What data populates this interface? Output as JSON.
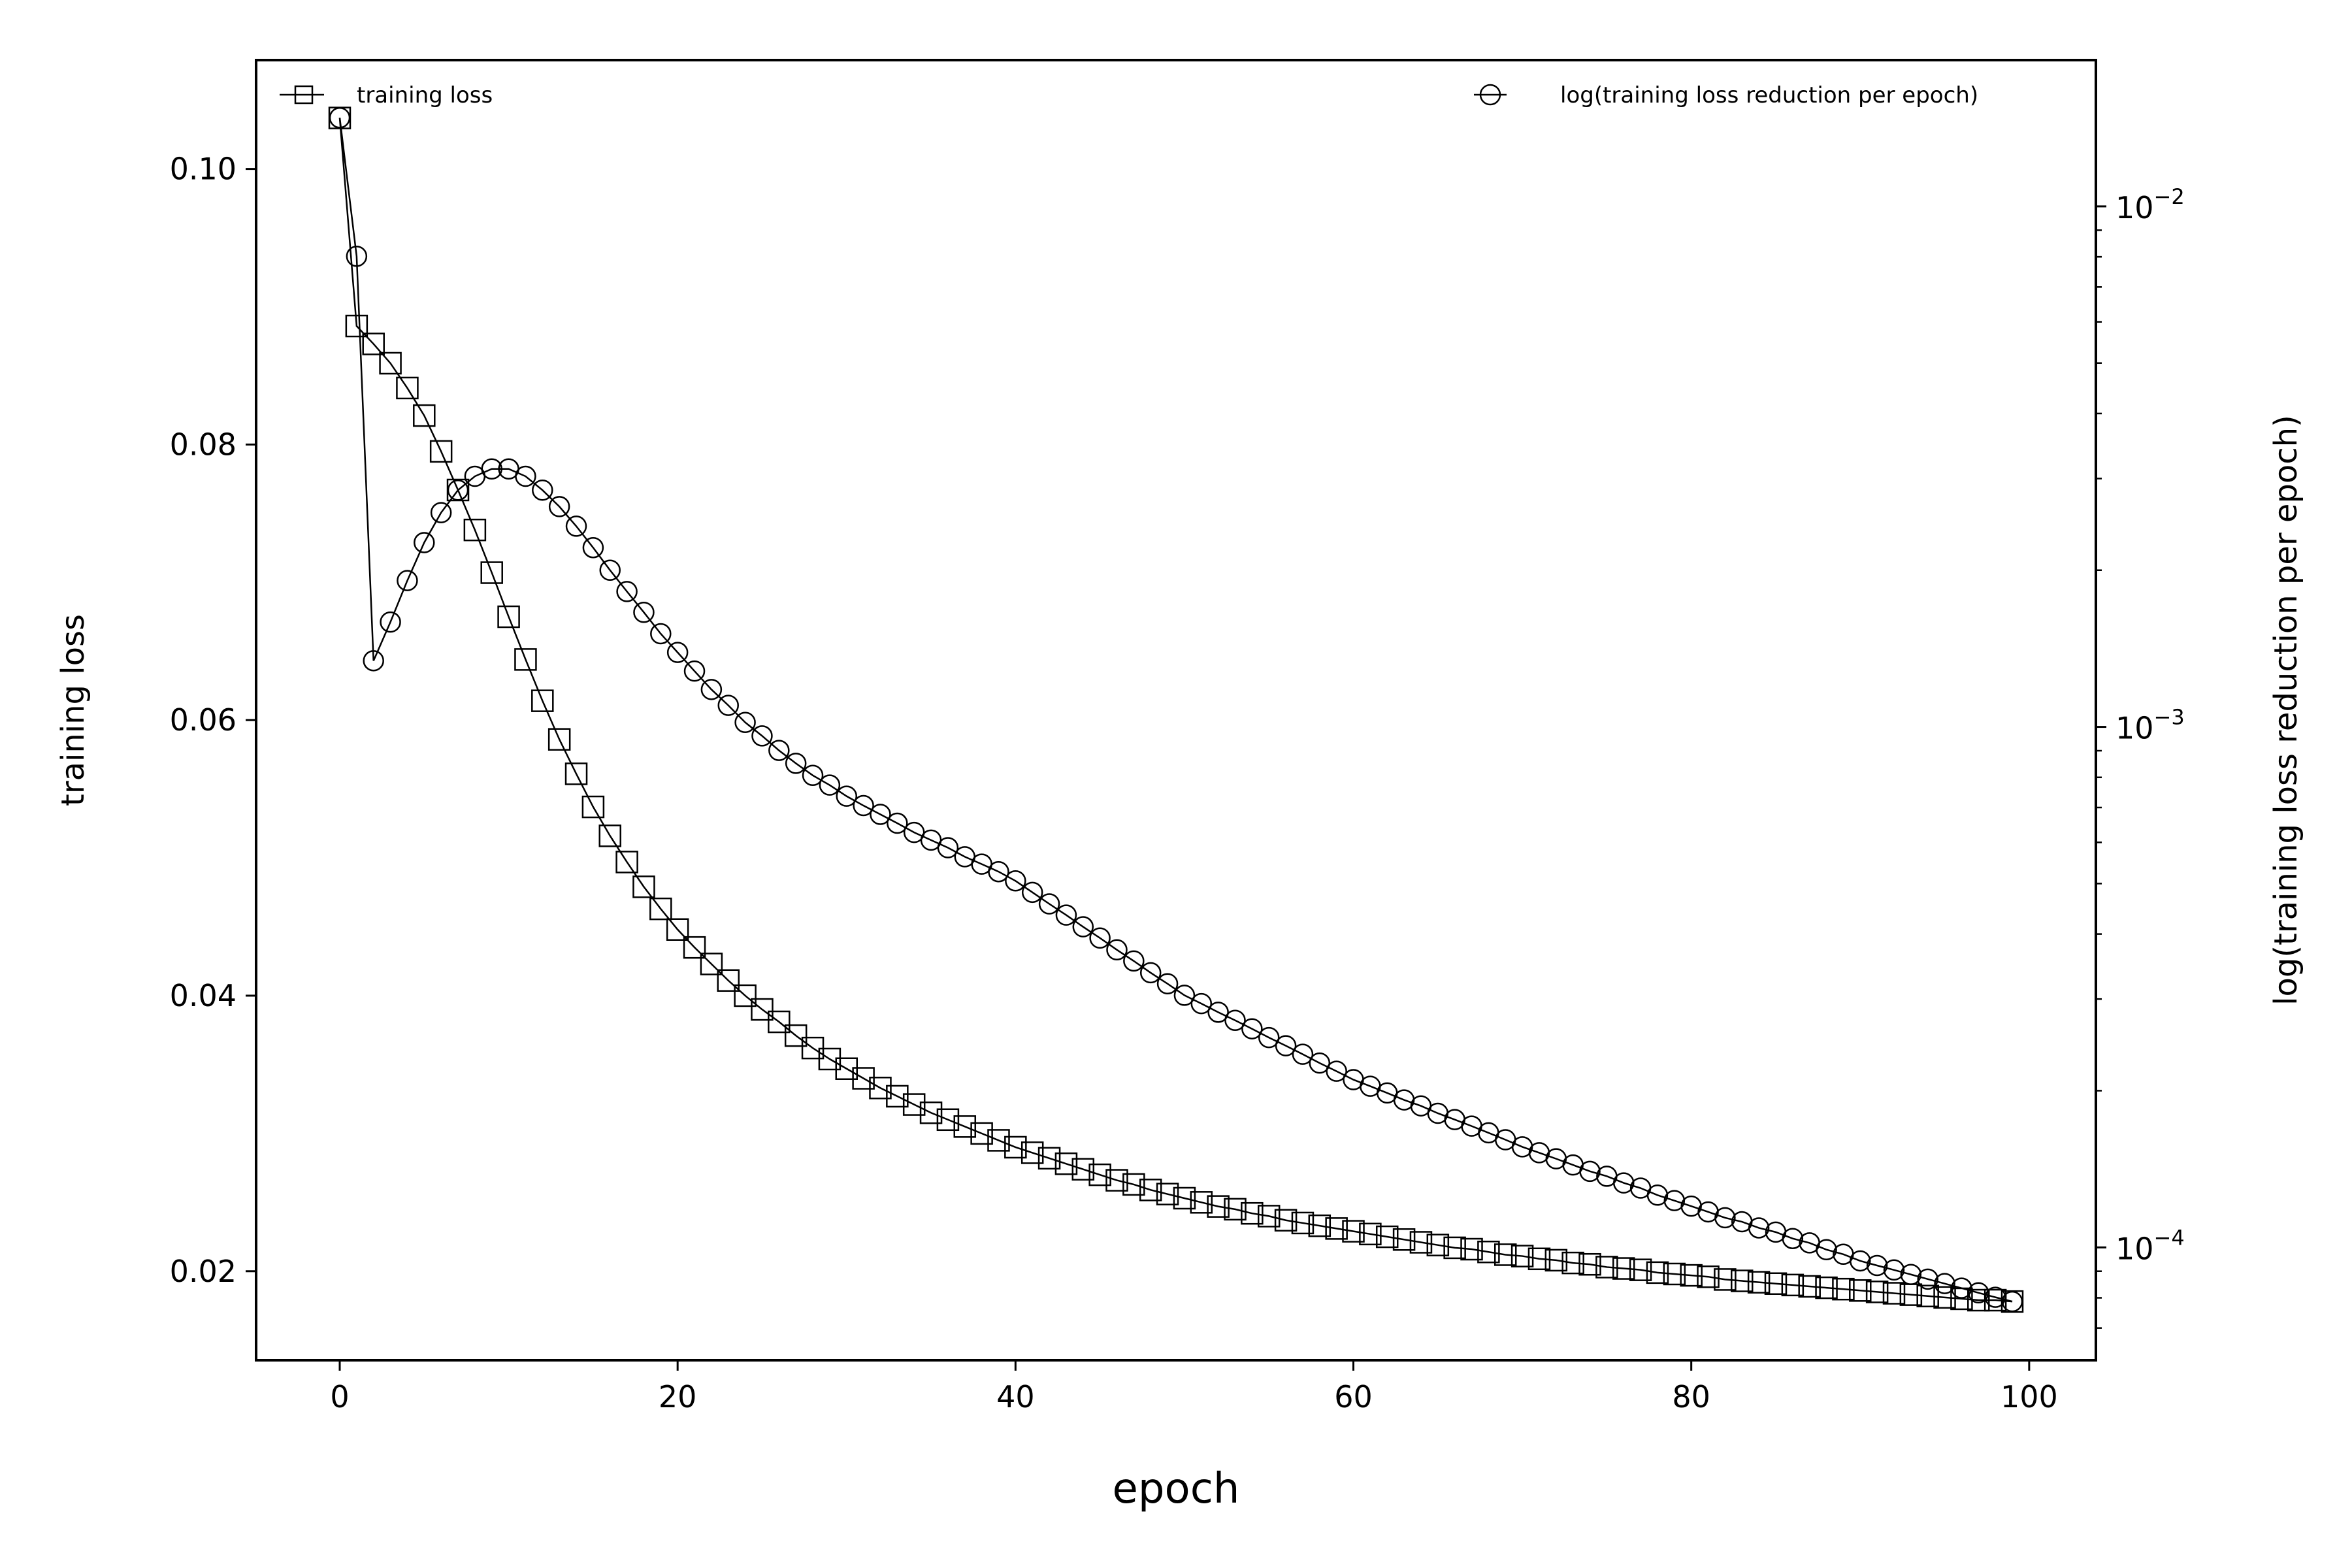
{
  "chart_data": {
    "type": "line",
    "title": "",
    "xlabel": "epoch",
    "ylabel": "training loss",
    "y2label": "log(training loss reduction per epoch)",
    "xlim": [
      -4.95,
      103.95
    ],
    "ylim": [
      0.01354,
      0.1079
    ],
    "y2lim": [
      6.07e-05,
      0.0191
    ],
    "y2scale": "log",
    "grid": false,
    "xticks": [
      0,
      20,
      40,
      60,
      80,
      100
    ],
    "xtick_labels": [
      "0",
      "20",
      "40",
      "60",
      "80",
      "100"
    ],
    "yticks": [
      0.02,
      0.04,
      0.06,
      0.08,
      0.1
    ],
    "ytick_labels": [
      "0.02",
      "0.04",
      "0.06",
      "0.08",
      "0.10"
    ],
    "y2ticks": [
      0.0001,
      0.001,
      0.01
    ],
    "y2tick_labels": [
      {
        "base": "10",
        "exp": "−4"
      },
      {
        "base": "10",
        "exp": "−3"
      },
      {
        "base": "10",
        "exp": "−2"
      }
    ],
    "x": [
      0,
      1,
      2,
      3,
      4,
      5,
      6,
      7,
      8,
      9,
      10,
      11,
      12,
      13,
      14,
      15,
      16,
      17,
      18,
      19,
      20,
      21,
      22,
      23,
      24,
      25,
      26,
      27,
      28,
      29,
      30,
      31,
      32,
      33,
      34,
      35,
      36,
      37,
      38,
      39,
      40,
      41,
      42,
      43,
      44,
      45,
      46,
      47,
      48,
      49,
      50,
      51,
      52,
      53,
      54,
      55,
      56,
      57,
      58,
      59,
      60,
      61,
      62,
      63,
      64,
      65,
      66,
      67,
      68,
      69,
      70,
      71,
      72,
      73,
      74,
      75,
      76,
      77,
      78,
      79,
      80,
      81,
      82,
      83,
      84,
      85,
      86,
      87,
      88,
      89,
      90,
      91,
      92,
      93,
      94,
      95,
      96,
      97,
      98,
      99
    ],
    "series": [
      {
        "name": "training loss",
        "axis": "left",
        "marker": "square",
        "legend_position": "top-left",
        "values": [
          0.1037,
          0.0886,
          0.0873,
          0.0859,
          0.0841,
          0.0821,
          0.0795,
          0.0767,
          0.0738,
          0.0707,
          0.0675,
          0.0644,
          0.0614,
          0.0586,
          0.0561,
          0.0537,
          0.0516,
          0.0497,
          0.0479,
          0.0463,
          0.0448,
          0.0435,
          0.0423,
          0.0411,
          0.04,
          0.039,
          0.0381,
          0.0371,
          0.0362,
          0.0354,
          0.0347,
          0.034,
          0.0333,
          0.0327,
          0.0321,
          0.0315,
          0.031,
          0.0305,
          0.03,
          0.0295,
          0.029,
          0.0286,
          0.0282,
          0.0278,
          0.0274,
          0.027,
          0.0266,
          0.0263,
          0.0259,
          0.0256,
          0.0253,
          0.025,
          0.0247,
          0.0245,
          0.0242,
          0.024,
          0.0237,
          0.0235,
          0.0233,
          0.0231,
          0.0229,
          0.0227,
          0.0225,
          0.0223,
          0.0221,
          0.0219,
          0.0217,
          0.0216,
          0.0214,
          0.0212,
          0.0211,
          0.0209,
          0.0208,
          0.0206,
          0.0205,
          0.0203,
          0.0202,
          0.0201,
          0.0199,
          0.0198,
          0.0197,
          0.0196,
          0.0194,
          0.0193,
          0.0192,
          0.0191,
          0.019,
          0.0189,
          0.0188,
          0.0187,
          0.0186,
          0.0185,
          0.0184,
          0.0183,
          0.0182,
          0.0181,
          0.018,
          0.0179,
          0.0179,
          0.0178
        ]
      },
      {
        "name": "log(training loss reduction per epoch)",
        "axis": "right",
        "marker": "circle",
        "legend_position": "top-right",
        "values": [
          0.0148,
          0.00802,
          0.00134,
          0.00159,
          0.00191,
          0.00226,
          0.00258,
          0.00285,
          0.00303,
          0.00313,
          0.00313,
          0.00303,
          0.00285,
          0.00265,
          0.00243,
          0.00221,
          0.002,
          0.00182,
          0.00166,
          0.00151,
          0.00139,
          0.00128,
          0.00118,
          0.0011,
          0.00102,
          0.000961,
          0.000901,
          0.000851,
          0.000807,
          0.000773,
          0.000736,
          0.000706,
          0.000679,
          0.000653,
          0.000627,
          0.000606,
          0.000586,
          0.000563,
          0.000545,
          0.000527,
          0.000506,
          0.000481,
          0.000457,
          0.000435,
          0.000413,
          0.000393,
          0.000373,
          0.000355,
          0.000337,
          0.000321,
          0.000305,
          0.000294,
          0.000283,
          0.000273,
          0.000263,
          0.000253,
          0.000244,
          0.000235,
          0.000226,
          0.000218,
          0.00021,
          0.000204,
          0.000198,
          0.000192,
          0.000187,
          0.000181,
          0.000176,
          0.000171,
          0.000166,
          0.000161,
          0.000156,
          0.000152,
          0.000148,
          0.000144,
          0.00014,
          0.000137,
          0.000133,
          0.00013,
          0.000126,
          0.000123,
          0.00012,
          0.000117,
          0.000114,
          0.000112,
          0.000109,
          0.000107,
          0.000104,
          0.000102,
          9.9e-05,
          9.7e-05,
          9.42e-05,
          9.23e-05,
          9.05e-05,
          8.87e-05,
          8.69e-05,
          8.52e-05,
          8.35e-05,
          8.18e-05,
          8.02e-05,
          7.87e-05
        ]
      }
    ]
  }
}
